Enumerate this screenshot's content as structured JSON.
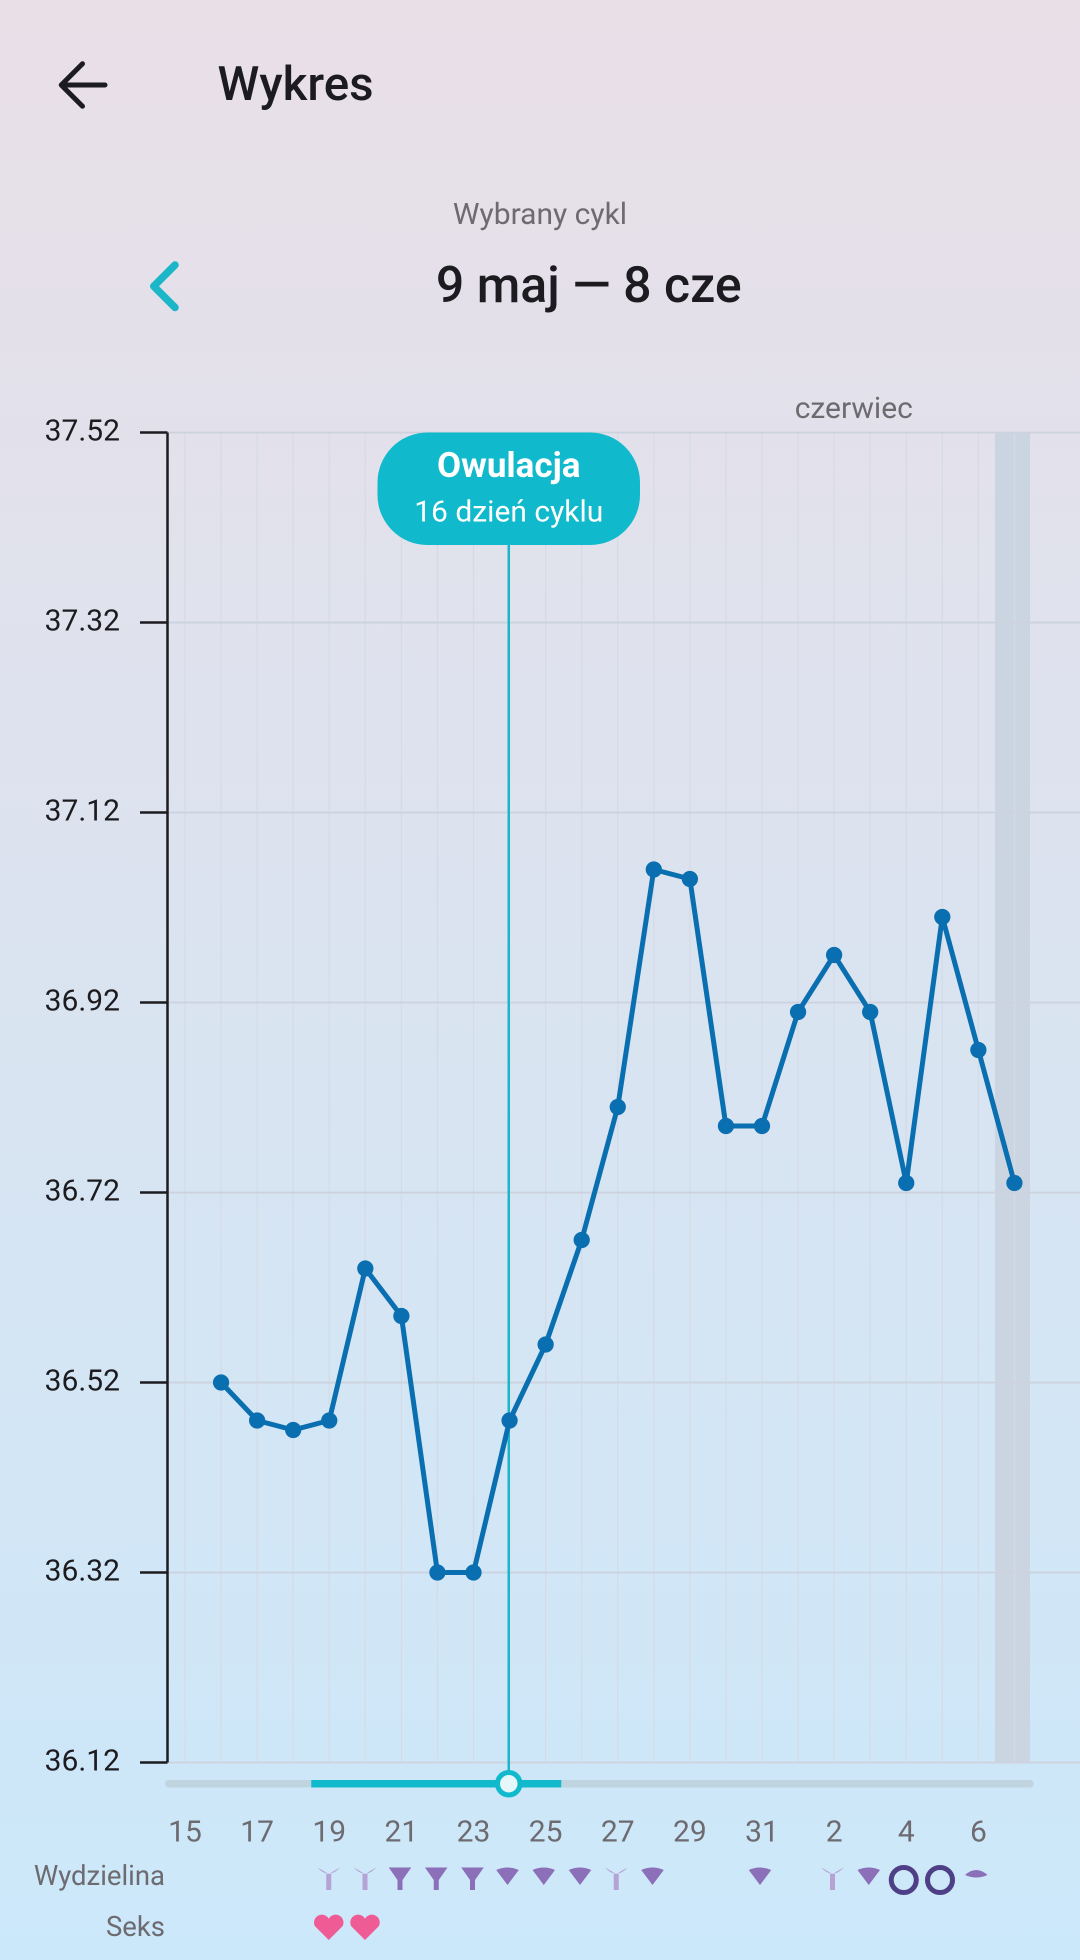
{
  "header": {
    "title": "Wykres"
  },
  "cycle": {
    "label": "Wybrany cykl",
    "range": "9 maj — 8 cze"
  },
  "chart_data": {
    "type": "line",
    "month_label": "czerwiec",
    "annotation": {
      "title": "Owulacja",
      "subtitle": "16 dzień cyklu"
    },
    "categories": [
      "15",
      null,
      "17",
      null,
      "19",
      null,
      "21",
      null,
      "23",
      null,
      "25",
      null,
      "27",
      null,
      "29",
      null,
      "31",
      null,
      "2",
      null,
      "4",
      null,
      "6",
      null
    ],
    "series": [
      {
        "color": "#0a6fb0",
        "values": [
          null,
          36.52,
          36.48,
          36.47,
          36.48,
          36.64,
          36.59,
          36.32,
          36.32,
          36.48,
          36.56,
          36.67,
          36.81,
          37.06,
          37.05,
          36.79,
          36.79,
          36.91,
          36.97,
          36.91,
          36.73,
          37.01,
          36.87,
          36.73
        ]
      }
    ],
    "ylim": [
      36.12,
      37.52
    ],
    "yticks": [
      37.52,
      37.32,
      37.12,
      36.92,
      36.72,
      36.52,
      36.32,
      36.12
    ],
    "grid": true
  },
  "rows": {
    "discharge": "Wydzielina",
    "sex": "Seks"
  }
}
